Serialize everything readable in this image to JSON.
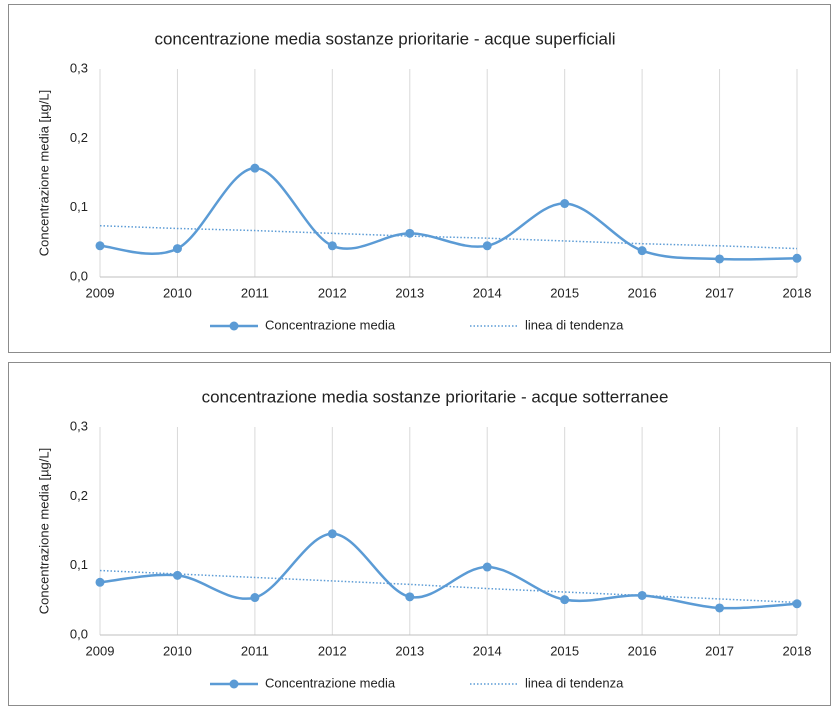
{
  "chart_data": [
    {
      "type": "line",
      "title": "concentrazione media sostanze prioritarie - acque superficiali",
      "y_label": "Concentrazione  media  [µg/L]",
      "categories": [
        "2009",
        "2010",
        "2011",
        "2012",
        "2013",
        "2014",
        "2015",
        "2016",
        "2017",
        "2018"
      ],
      "series": [
        {
          "name": "Concentrazione media",
          "color": "#5b9bd5",
          "style": "solid",
          "markers": true,
          "values": [
            0.045,
            0.041,
            0.157,
            0.045,
            0.063,
            0.045,
            0.106,
            0.038,
            0.026,
            0.027
          ]
        },
        {
          "name": "linea di tendenza",
          "color": "#5b9bd5",
          "style": "dotted",
          "markers": false,
          "values": [
            0.074,
            0.07,
            0.067,
            0.063,
            0.059,
            0.056,
            0.052,
            0.048,
            0.045,
            0.041
          ]
        }
      ],
      "ylim": [
        0,
        0.3
      ],
      "yticks": [
        {
          "value": 0,
          "label": "0,0"
        },
        {
          "value": 0.1,
          "label": "0,1"
        },
        {
          "value": 0.2,
          "label": "0,2"
        },
        {
          "value": 0.3,
          "label": "0,3"
        }
      ],
      "grid": "x",
      "legend": "bottom"
    },
    {
      "type": "line",
      "title": "concentrazione media sostanze prioritarie - acque sotterranee",
      "y_label": "Concentrazione  media  [µg/L]",
      "categories": [
        "2009",
        "2010",
        "2011",
        "2012",
        "2013",
        "2014",
        "2015",
        "2016",
        "2017",
        "2018"
      ],
      "series": [
        {
          "name": "Concentrazione media",
          "color": "#5b9bd5",
          "style": "solid",
          "markers": true,
          "values": [
            0.076,
            0.086,
            0.054,
            0.146,
            0.055,
            0.098,
            0.051,
            0.057,
            0.039,
            0.045
          ]
        },
        {
          "name": "linea di tendenza",
          "color": "#5b9bd5",
          "style": "dotted",
          "markers": false,
          "values": [
            0.093,
            0.088,
            0.083,
            0.078,
            0.073,
            0.067,
            0.062,
            0.057,
            0.052,
            0.047
          ]
        }
      ],
      "ylim": [
        0,
        0.3
      ],
      "yticks": [
        {
          "value": 0,
          "label": "0,0"
        },
        {
          "value": 0.1,
          "label": "0,1"
        },
        {
          "value": 0.2,
          "label": "0,2"
        },
        {
          "value": 0.3,
          "label": "0,3"
        }
      ],
      "grid": "x",
      "legend": "bottom"
    }
  ]
}
